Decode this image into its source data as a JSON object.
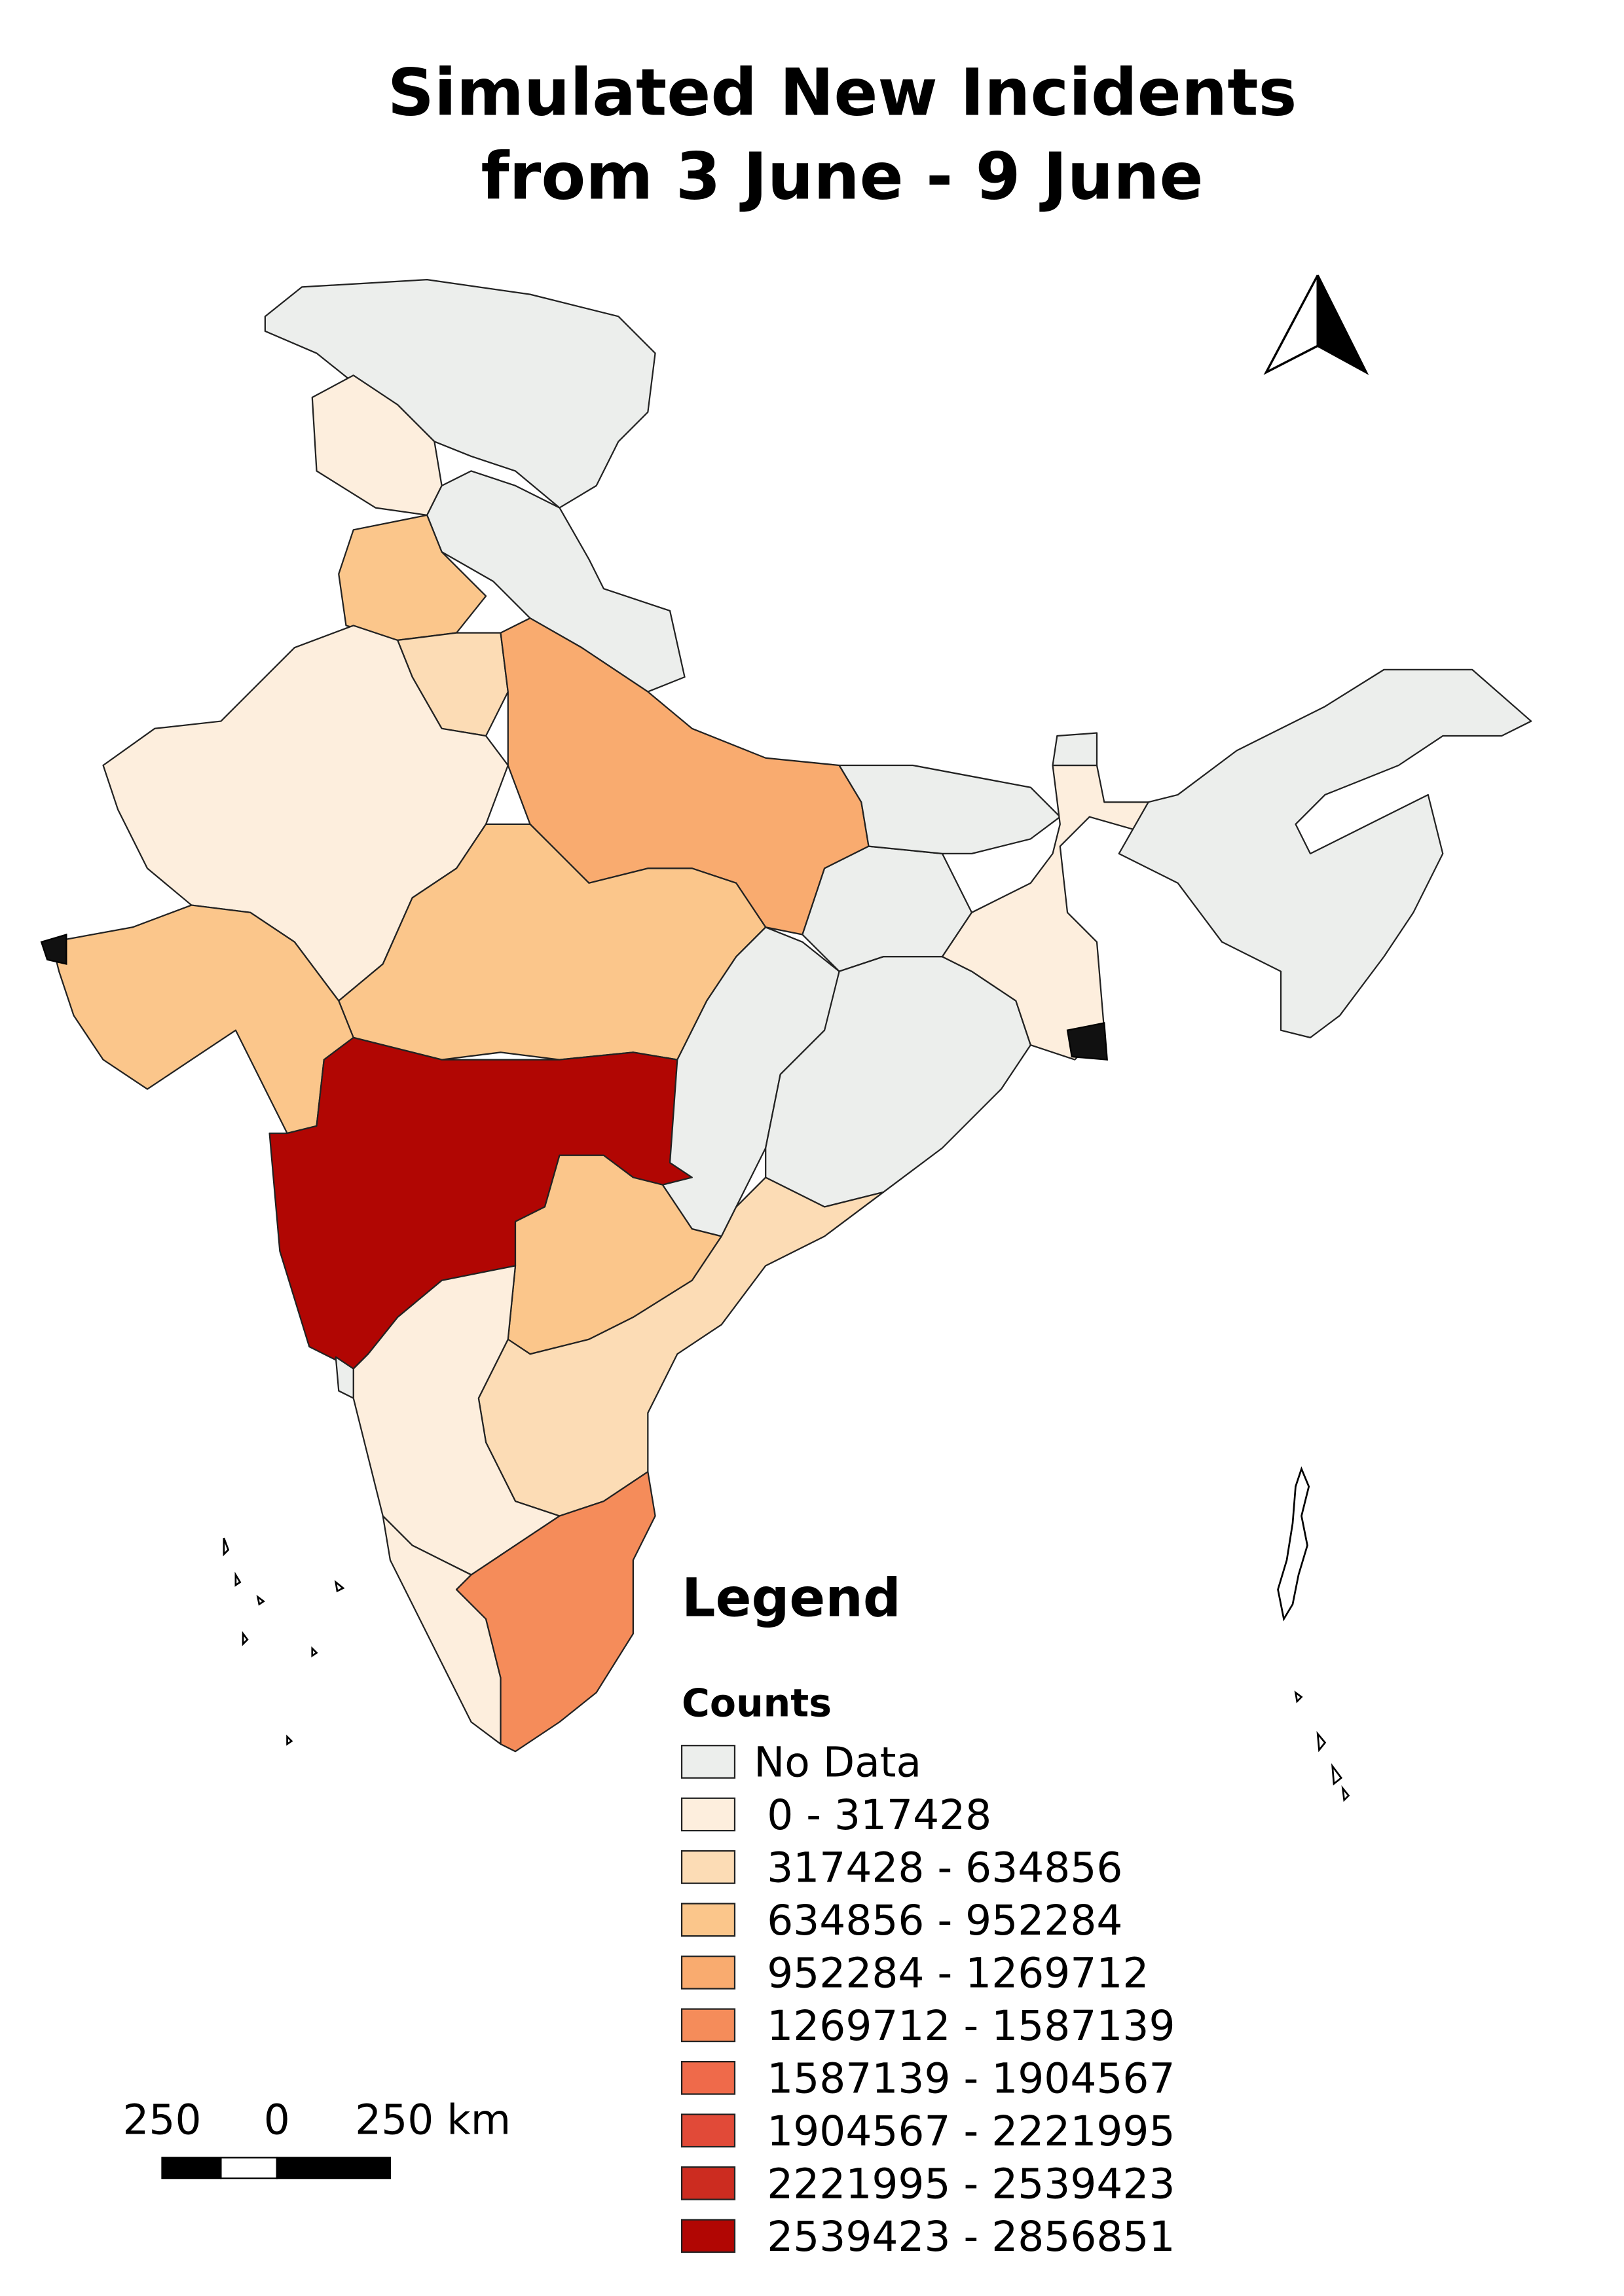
{
  "title": [
    "Simulated New Incidents",
    "from 3 June - 9 June"
  ],
  "legend": {
    "title": "Legend",
    "subtitle": "Counts",
    "items": [
      {
        "label": "No Data",
        "color": "#eceeec"
      },
      {
        "label": " 0 - 317428",
        "color": "#fdeedd"
      },
      {
        "label": " 317428 - 634856",
        "color": "#fcdcb5"
      },
      {
        "label": " 634856 - 952284",
        "color": "#fbc68b"
      },
      {
        "label": " 952284 - 1269712",
        "color": "#f9ab6f"
      },
      {
        "label": " 1269712 - 1587139",
        "color": "#f58c5a"
      },
      {
        "label": " 1587139 - 1904567",
        "color": "#ef6a4a"
      },
      {
        "label": " 1904567 - 2221995",
        "color": "#e14a38"
      },
      {
        "label": " 2221995 - 2539423",
        "color": "#cc2c20"
      },
      {
        "label": " 2539423 - 2856851",
        "color": "#b10603"
      }
    ]
  },
  "scale_bar": {
    "labels": [
      "250",
      "0",
      "250 km"
    ]
  }
}
